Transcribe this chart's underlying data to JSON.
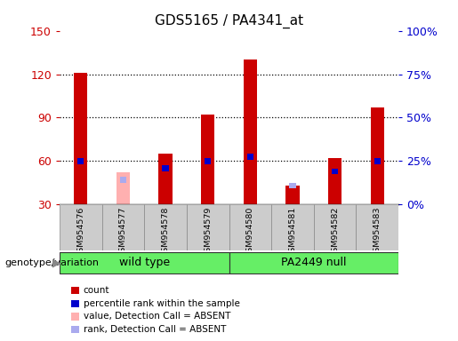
{
  "title": "GDS5165 / PA4341_at",
  "samples": [
    "GSM954576",
    "GSM954577",
    "GSM954578",
    "GSM954579",
    "GSM954580",
    "GSM954581",
    "GSM954582",
    "GSM954583"
  ],
  "count_values": [
    121,
    0,
    65,
    92,
    130,
    43,
    62,
    97
  ],
  "count_absent": [
    0,
    52,
    0,
    0,
    0,
    0,
    0,
    0
  ],
  "rank_values": [
    60,
    0,
    55,
    60,
    63,
    0,
    53,
    60
  ],
  "rank_absent": [
    0,
    47,
    0,
    0,
    0,
    43,
    0,
    0
  ],
  "ylim_left": [
    30,
    150
  ],
  "yticks_left": [
    30,
    60,
    90,
    120,
    150
  ],
  "yticks_right": [
    0,
    25,
    50,
    75,
    100
  ],
  "ylabel_left_color": "#cc0000",
  "ylabel_right_color": "#0000cc",
  "bar_color": "#cc0000",
  "bar_absent_color": "#ffb0b0",
  "rank_color": "#0000cc",
  "rank_absent_color": "#aaaaee",
  "grid_color": "#000000",
  "bg_color": "#ffffff",
  "plot_bg": "#ffffff",
  "tick_label_area_color": "#cccccc",
  "group_labels": [
    "wild type",
    "PA2449 null"
  ],
  "group_ranges": [
    [
      0,
      4
    ],
    [
      4,
      8
    ]
  ],
  "group_color": "#66ee66",
  "left_label": "genotype/variation",
  "bar_width": 0.32,
  "rank_bar_width": 0.15,
  "rank_bar_height": 4,
  "dotted_lines": [
    60,
    90,
    120
  ],
  "legend_items": [
    {
      "label": "count",
      "color": "#cc0000"
    },
    {
      "label": "percentile rank within the sample",
      "color": "#0000cc"
    },
    {
      "label": "value, Detection Call = ABSENT",
      "color": "#ffb0b0"
    },
    {
      "label": "rank, Detection Call = ABSENT",
      "color": "#aaaaee"
    }
  ]
}
